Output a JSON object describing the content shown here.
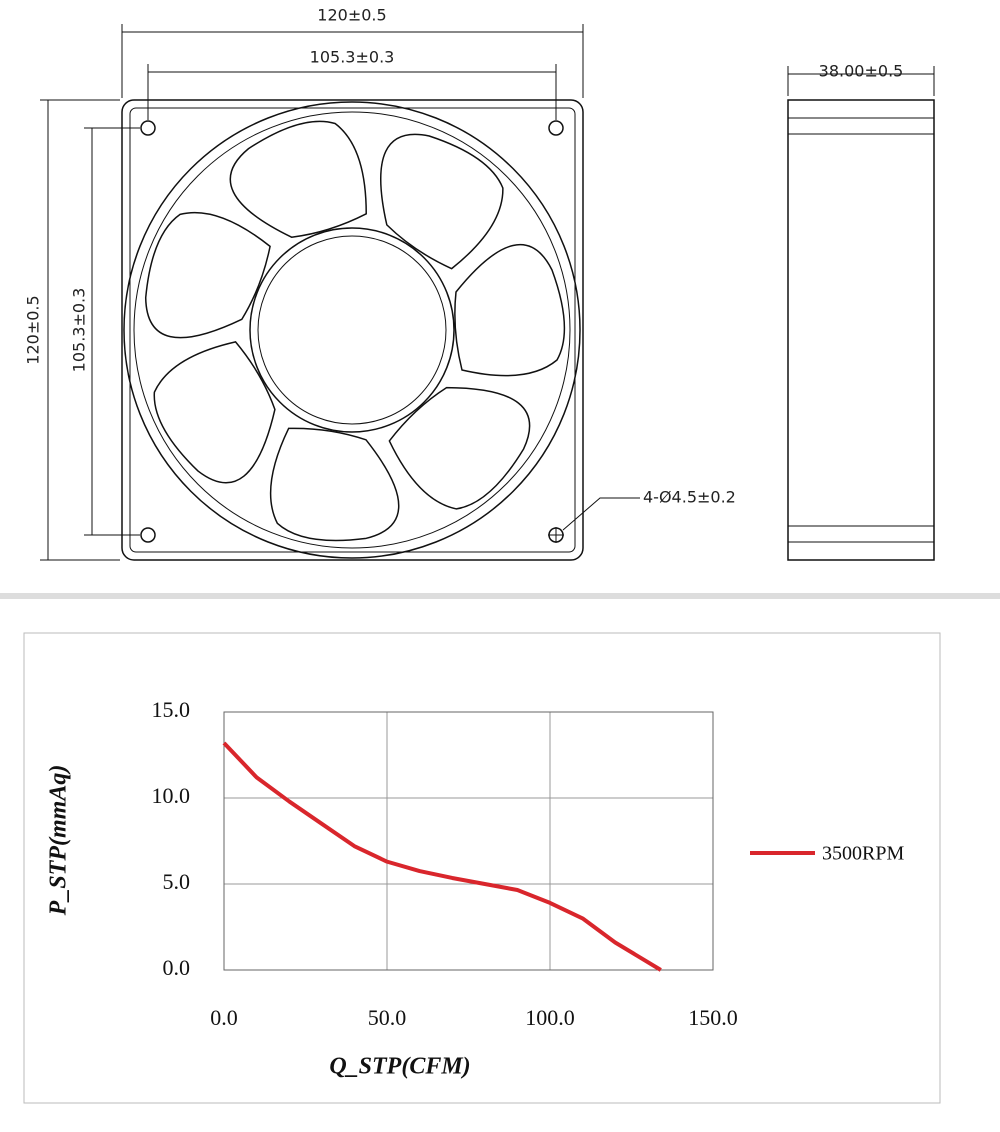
{
  "drawing": {
    "width_label": "120±0.5",
    "hole_span_label": "105.3±0.3",
    "height_label": "120±0.5",
    "hole_span_vertical_label": "105.3±0.3",
    "depth_label": "38.00±0.5",
    "hole_label": "4-Ø4.5±0.2"
  },
  "chart_data": {
    "type": "line",
    "xlabel": "Q_STP(CFM)",
    "ylabel": "P_STP(mmAq)",
    "x": [
      0,
      10,
      20,
      30,
      40,
      50,
      60,
      70,
      80,
      90,
      100,
      110,
      120,
      134
    ],
    "series": [
      {
        "name": "3500RPM",
        "color": "#d9262c",
        "values": [
          13.2,
          11.2,
          9.8,
          8.5,
          7.2,
          6.3,
          5.75,
          5.35,
          5.0,
          4.65,
          3.9,
          3.0,
          1.6,
          0
        ]
      }
    ],
    "xlim": [
      0,
      150
    ],
    "ylim": [
      0,
      15
    ],
    "xticks": [
      {
        "value": 0,
        "label": "0.0"
      },
      {
        "value": 50,
        "label": "50.0"
      },
      {
        "value": 100,
        "label": "100.0"
      },
      {
        "value": 150,
        "label": "150.0"
      }
    ],
    "yticks": [
      {
        "value": 0,
        "label": "0.0"
      },
      {
        "value": 5,
        "label": "5.0"
      },
      {
        "value": 10,
        "label": "10.0"
      },
      {
        "value": 15,
        "label": "15.0"
      }
    ],
    "grid": true,
    "legend": "right"
  }
}
